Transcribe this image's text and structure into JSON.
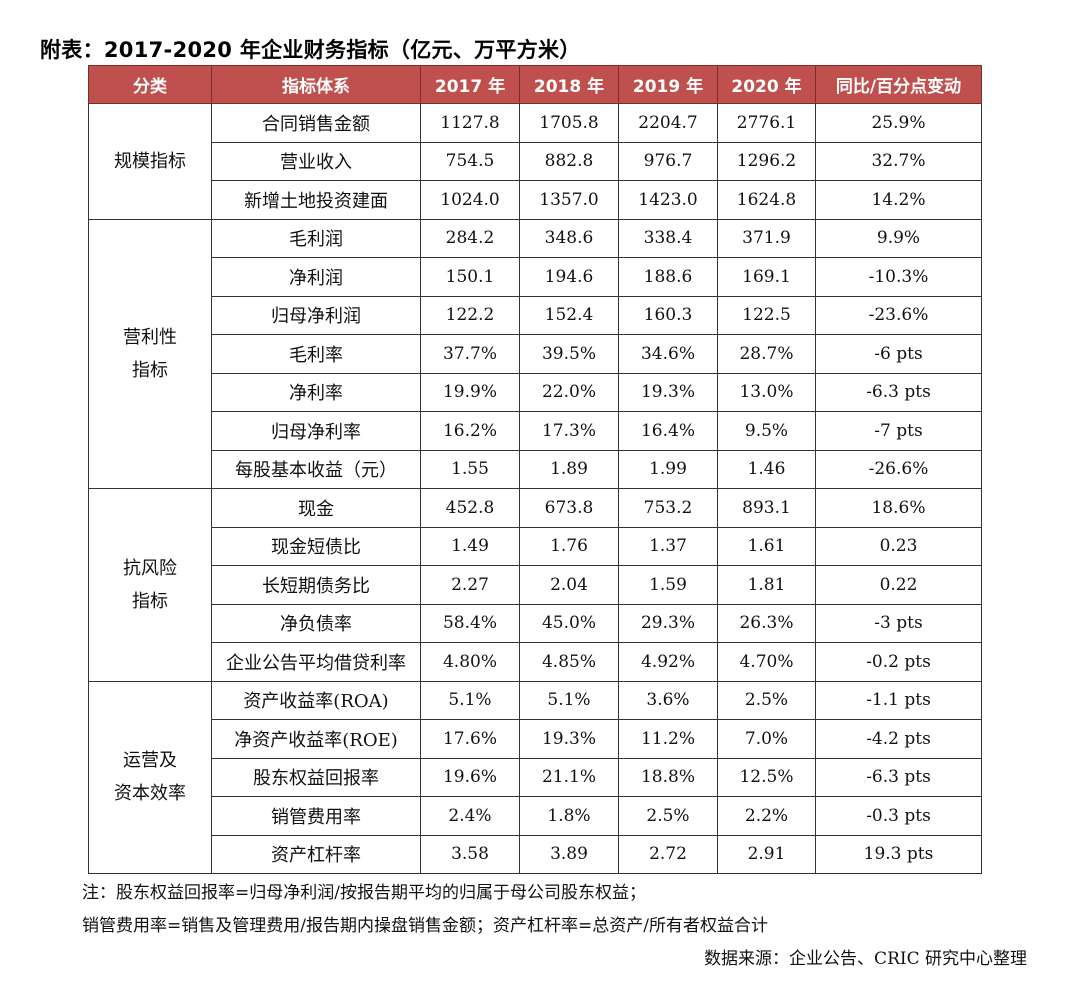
{
  "title": "附表：2017-2020 年企业财务指标（亿元、万平方米）",
  "headers": [
    "分类",
    "指标体系",
    "2017 年",
    "2018 年",
    "2019 年",
    "2020 年",
    "同比/百分点变动"
  ],
  "groups": [
    {
      "category": [
        "规模指标"
      ],
      "rows": [
        {
          "name": "合同销售金额",
          "values": [
            "1127.8",
            "1705.8",
            "2204.7",
            "2776.1"
          ],
          "change": "25.9%"
        },
        {
          "name": "营业收入",
          "values": [
            "754.5",
            "882.8",
            "976.7",
            "1296.2"
          ],
          "change": "32.7%"
        },
        {
          "name": "新增土地投资建面",
          "values": [
            "1024.0",
            "1357.0",
            "1423.0",
            "1624.8"
          ],
          "change": "14.2%"
        }
      ]
    },
    {
      "category": [
        "营利性",
        "指标"
      ],
      "rows": [
        {
          "name": "毛利润",
          "values": [
            "284.2",
            "348.6",
            "338.4",
            "371.9"
          ],
          "change": "9.9%"
        },
        {
          "name": "净利润",
          "values": [
            "150.1",
            "194.6",
            "188.6",
            "169.1"
          ],
          "change": "-10.3%"
        },
        {
          "name": "归母净利润",
          "values": [
            "122.2",
            "152.4",
            "160.3",
            "122.5"
          ],
          "change": "-23.6%"
        },
        {
          "name": "毛利率",
          "values": [
            "37.7%",
            "39.5%",
            "34.6%",
            "28.7%"
          ],
          "change": "-6 pts"
        },
        {
          "name": "净利率",
          "values": [
            "19.9%",
            "22.0%",
            "19.3%",
            "13.0%"
          ],
          "change": "-6.3 pts"
        },
        {
          "name": "归母净利率",
          "values": [
            "16.2%",
            "17.3%",
            "16.4%",
            "9.5%"
          ],
          "change": "-7 pts"
        },
        {
          "name": "每股基本收益（元）",
          "values": [
            "1.55",
            "1.89",
            "1.99",
            "1.46"
          ],
          "change": "-26.6%"
        }
      ]
    },
    {
      "category": [
        "抗风险",
        "指标"
      ],
      "rows": [
        {
          "name": "现金",
          "values": [
            "452.8",
            "673.8",
            "753.2",
            "893.1"
          ],
          "change": "18.6%"
        },
        {
          "name": "现金短债比",
          "values": [
            "1.49",
            "1.76",
            "1.37",
            "1.61"
          ],
          "change": "0.23"
        },
        {
          "name": "长短期债务比",
          "values": [
            "2.27",
            "2.04",
            "1.59",
            "1.81"
          ],
          "change": "0.22"
        },
        {
          "name": "净负债率",
          "values": [
            "58.4%",
            "45.0%",
            "29.3%",
            "26.3%"
          ],
          "change": "-3 pts"
        },
        {
          "name": "企业公告平均借贷利率",
          "values": [
            "4.80%",
            "4.85%",
            "4.92%",
            "4.70%"
          ],
          "change": "-0.2 pts"
        }
      ]
    },
    {
      "category": [
        "运营及",
        "资本效率"
      ],
      "rows": [
        {
          "name": "资产收益率(ROA)",
          "values": [
            "5.1%",
            "5.1%",
            "3.6%",
            "2.5%"
          ],
          "change": "-1.1 pts"
        },
        {
          "name": "净资产收益率(ROE)",
          "values": [
            "17.6%",
            "19.3%",
            "11.2%",
            "7.0%"
          ],
          "change": "-4.2 pts"
        },
        {
          "name": "股东权益回报率",
          "values": [
            "19.6%",
            "21.1%",
            "18.8%",
            "12.5%"
          ],
          "change": "-6.3 pts"
        },
        {
          "name": "销管费用率",
          "values": [
            "2.4%",
            "1.8%",
            "2.5%",
            "2.2%"
          ],
          "change": "-0.3 pts"
        },
        {
          "name": "资产杠杆率",
          "values": [
            "3.58",
            "3.89",
            "2.72",
            "2.91"
          ],
          "change": "19.3 pts"
        }
      ]
    }
  ],
  "notes": [
    "注：股东权益回报率=归母净利润/按报告期平均的归属于母公司股东权益；",
    "销管费用率=销售及管理费用/报告期内操盘销售金额；资产杠杆率=总资产/所有者权益合计"
  ],
  "source": "数据来源：企业公告、CRIC 研究中心整理"
}
